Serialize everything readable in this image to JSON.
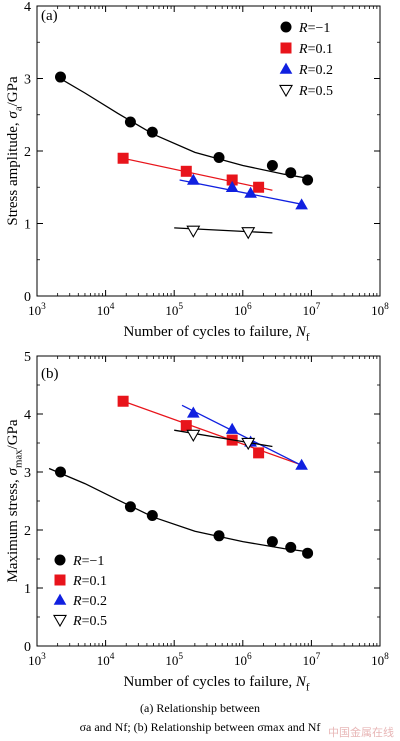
{
  "caption_line1": "(a) Relationship between",
  "caption_line2": "σa and Nf; (b) Relationship between σmax and Nf",
  "watermark": "中国金属在线",
  "chart_data": [
    {
      "type": "scatter",
      "panel_label": "(a)",
      "xlabel": "Number of cycles to failure, Nf",
      "ylabel": "Stress amplitude, σa/GPa",
      "xscale": "log",
      "xlim": [
        1000,
        100000000
      ],
      "ylim": [
        0,
        4
      ],
      "xticks": [
        1000,
        10000,
        100000,
        1000000,
        10000000,
        100000000
      ],
      "xtick_labels": [
        "10^3",
        "10^4",
        "10^5",
        "10^6",
        "10^7",
        "10^8"
      ],
      "yticks": [
        0,
        1,
        2,
        3,
        4
      ],
      "ytick_labels": [
        "0",
        "1",
        "2",
        "3",
        "4"
      ],
      "legend_placement": "top-right",
      "series": [
        {
          "name": "R=−1",
          "marker": "circle",
          "color": "#000000",
          "fit": "curve",
          "x": [
            2200,
            23000,
            48000,
            450000,
            2700000,
            5000000,
            8800000
          ],
          "y": [
            3.02,
            2.4,
            2.26,
            1.91,
            1.8,
            1.7,
            1.6
          ],
          "fit_x": [
            2000,
            5000,
            15000,
            50000,
            200000,
            1000000,
            4000000,
            9500000
          ],
          "fit_y": [
            3.02,
            2.8,
            2.52,
            2.23,
            1.98,
            1.8,
            1.68,
            1.62
          ]
        },
        {
          "name": "R=0.1",
          "marker": "square",
          "color": "#e8141b",
          "fit": "line",
          "x": [
            18000,
            150000,
            700000,
            1700000
          ],
          "y": [
            1.9,
            1.72,
            1.6,
            1.5
          ],
          "fit_x": [
            18000,
            2700000
          ],
          "fit_y": [
            1.9,
            1.46
          ]
        },
        {
          "name": "R=0.2",
          "marker": "triangle",
          "color": "#1020e0",
          "fit": "line",
          "x": [
            190000,
            700000,
            1300000,
            7200000
          ],
          "y": [
            1.6,
            1.5,
            1.42,
            1.26
          ],
          "fit_x": [
            120000,
            7800000
          ],
          "fit_y": [
            1.6,
            1.26
          ]
        },
        {
          "name": "R=0.5",
          "marker": "triangle-down-open",
          "color": "#000000",
          "fit": "line",
          "x": [
            190000,
            1200000
          ],
          "y": [
            0.9,
            0.88
          ],
          "fit_x": [
            100000,
            2700000
          ],
          "fit_y": [
            0.94,
            0.87
          ]
        }
      ]
    },
    {
      "type": "scatter",
      "panel_label": "(b)",
      "xlabel": "Number of cycles to failure, Nf",
      "ylabel": "Maximum stress, σmax/GPa",
      "xscale": "log",
      "xlim": [
        1000,
        100000000
      ],
      "ylim": [
        0,
        5
      ],
      "xticks": [
        1000,
        10000,
        100000,
        1000000,
        10000000,
        100000000
      ],
      "xtick_labels": [
        "10^3",
        "10^4",
        "10^5",
        "10^6",
        "10^7",
        "10^8"
      ],
      "yticks": [
        0,
        1,
        2,
        3,
        4,
        5
      ],
      "ytick_labels": [
        "0",
        "1",
        "2",
        "3",
        "4",
        "5"
      ],
      "legend_placement": "bottom-left",
      "series": [
        {
          "name": "R=−1",
          "marker": "circle",
          "color": "#000000",
          "fit": "curve",
          "x": [
            2200,
            23000,
            48000,
            450000,
            2700000,
            5000000,
            8800000
          ],
          "y": [
            3.0,
            2.4,
            2.25,
            1.9,
            1.8,
            1.7,
            1.6
          ],
          "fit_x": [
            1500,
            5000,
            15000,
            50000,
            200000,
            1000000,
            4000000,
            9500000
          ],
          "fit_y": [
            3.06,
            2.8,
            2.52,
            2.22,
            1.98,
            1.8,
            1.68,
            1.62
          ]
        },
        {
          "name": "R=0.1",
          "marker": "square",
          "color": "#e8141b",
          "fit": "line",
          "x": [
            18000,
            150000,
            700000,
            1700000
          ],
          "y": [
            4.22,
            3.8,
            3.55,
            3.33
          ],
          "fit_x": [
            18000,
            8000000
          ],
          "fit_y": [
            4.22,
            3.1
          ]
        },
        {
          "name": "R=0.2",
          "marker": "triangle",
          "color": "#1020e0",
          "fit": "line",
          "x": [
            190000,
            700000,
            1300000,
            7200000
          ],
          "y": [
            4.02,
            3.74,
            3.52,
            3.12
          ],
          "fit_x": [
            130000,
            7600000
          ],
          "fit_y": [
            4.15,
            3.1
          ]
        },
        {
          "name": "R=0.5",
          "marker": "triangle-down-open",
          "color": "#000000",
          "fit": "line",
          "x": [
            190000,
            1200000
          ],
          "y": [
            3.64,
            3.5
          ],
          "fit_x": [
            100000,
            2700000
          ],
          "fit_y": [
            3.72,
            3.44
          ]
        }
      ]
    }
  ]
}
